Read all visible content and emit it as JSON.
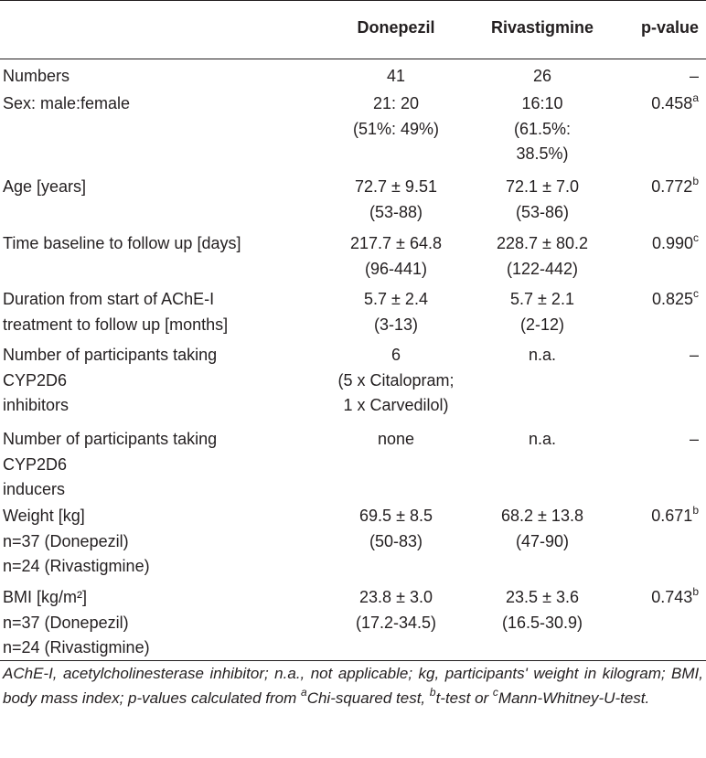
{
  "header": {
    "col1": "",
    "col2": "Donepezil",
    "col3": "Rivastigmine",
    "col4": "p-value"
  },
  "rows": [
    {
      "label": "Numbers",
      "donepezil": "41",
      "rivastigmine": "26",
      "p": "–",
      "sup": ""
    },
    {
      "label": "Sex: male:female",
      "donepezil": "21: 20\n(51%: 49%)",
      "rivastigmine": "16:10\n(61.5%:\n38.5%)",
      "p": "0.458",
      "sup": "a"
    },
    {
      "label": "Age [years]",
      "donepezil": "72.7 ± 9.51\n(53-88)",
      "rivastigmine": "72.1 ± 7.0\n(53-86)",
      "p": "0.772",
      "sup": "b"
    },
    {
      "label": "Time baseline to follow up [days]",
      "donepezil": "217.7 ± 64.8\n(96-441)",
      "rivastigmine": "228.7 ± 80.2\n(122-442)",
      "p": "0.990",
      "sup": "c"
    },
    {
      "label": "Duration from start of AChE-I\ntreatment to follow up [months]",
      "donepezil": "5.7 ± 2.4\n(3-13)",
      "rivastigmine": "5.7 ± 2.1\n(2-12)",
      "p": "0.825",
      "sup": "c"
    },
    {
      "label": "Number of participants taking\nCYP2D6\ninhibitors",
      "donepezil": "6\n(5 x Citalopram;\n1 x Carvedilol)",
      "rivastigmine": "n.a.",
      "p": "–",
      "sup": ""
    },
    {
      "label": "Number of participants taking\nCYP2D6\ninducers",
      "donepezil": "none",
      "rivastigmine": "n.a.",
      "p": "–",
      "sup": ""
    },
    {
      "label": "Weight [kg]\nn=37 (Donepezil)\nn=24 (Rivastigmine)",
      "donepezil": "69.5 ± 8.5\n(50-83)",
      "rivastigmine": "68.2 ± 13.8\n(47-90)",
      "p": "0.671",
      "sup": "b"
    },
    {
      "label": "BMI [kg/m²]\nn=37 (Donepezil)\nn=24 (Rivastigmine)",
      "donepezil": "23.8 ± 3.0\n(17.2-34.5)",
      "rivastigmine": "23.5 ± 3.6\n(16.5-30.9)",
      "p": "0.743",
      "sup": "b"
    }
  ],
  "footnote": {
    "text1": "AChE-I, acetylcholinesterase inhibitor; n.a., not applicable; kg, participants' weight in kilogram; BMI, body mass index; p-values calculated from ",
    "sup_a": "a",
    "text2": "Chi-squared test, ",
    "sup_b": "b",
    "text3": "t-test or ",
    "sup_c": "c",
    "text4": "Mann-Whitney-U-test."
  }
}
